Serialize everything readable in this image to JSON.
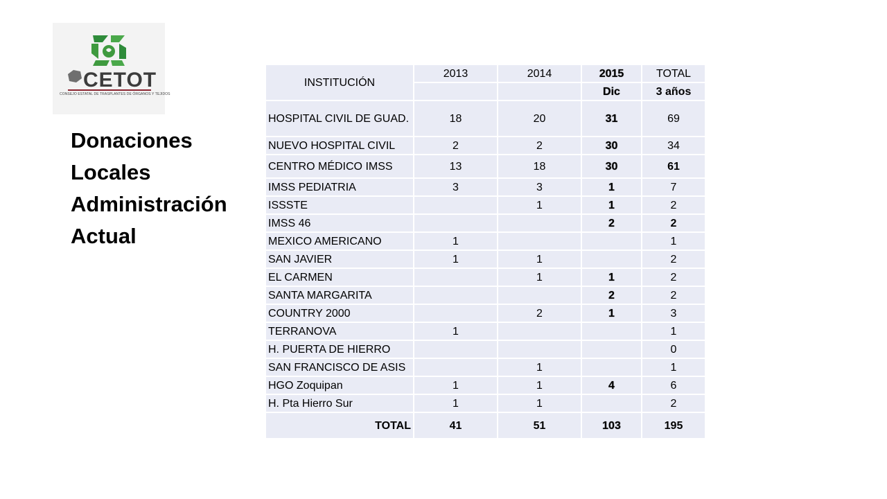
{
  "logo": {
    "name": "CETOT",
    "subtitle": "CONSEJO ESTATAL DE TRASPLANTES DE ÓRGANOS Y TEJIDOS"
  },
  "title_lines": [
    "Donaciones",
    "Locales",
    "Administración",
    "Actual"
  ],
  "table": {
    "header": {
      "institution": "INSTITUCIÓN",
      "y2013": "2013",
      "y2014": "2014",
      "y2015": "2015",
      "y2015_sub": "Dic",
      "total": "TOTAL",
      "total_sub": "3 años"
    },
    "rows": [
      {
        "name": "HOSPITAL CIVIL DE GUAD.",
        "y2013": "18",
        "y2014": "20",
        "y2015": "31",
        "total": "69"
      },
      {
        "name": "NUEVO HOSPITAL CIVIL",
        "y2013": "2",
        "y2014": "2",
        "y2015": "30",
        "total": "34"
      },
      {
        "name": "CENTRO MÉDICO IMSS",
        "y2013": "13",
        "y2014": "18",
        "y2015": "30",
        "total": "61"
      },
      {
        "name": "IMSS PEDIATRIA",
        "y2013": "3",
        "y2014": "3",
        "y2015": "1",
        "total": "7"
      },
      {
        "name": "ISSSTE",
        "y2013": "",
        "y2014": "1",
        "y2015": "1",
        "total": "2"
      },
      {
        "name": "IMSS 46",
        "y2013": "",
        "y2014": "",
        "y2015": "2",
        "total": "2"
      },
      {
        "name": "MEXICO AMERICANO",
        "y2013": "1",
        "y2014": "",
        "y2015": "",
        "total": "1"
      },
      {
        "name": "SAN JAVIER",
        "y2013": "1",
        "y2014": "1",
        "y2015": "",
        "total": "2"
      },
      {
        "name": "EL CARMEN",
        "y2013": "",
        "y2014": "1",
        "y2015": "1",
        "total": "2"
      },
      {
        "name": "SANTA MARGARITA",
        "y2013": "",
        "y2014": "",
        "y2015": "2",
        "total": "2"
      },
      {
        "name": "COUNTRY 2000",
        "y2013": "",
        "y2014": "2",
        "y2015": "1",
        "total": "3"
      },
      {
        "name": "TERRANOVA",
        "y2013": "1",
        "y2014": "",
        "y2015": "",
        "total": "1"
      },
      {
        "name": "H. PUERTA DE HIERRO",
        "y2013": "",
        "y2014": "",
        "y2015": "",
        "total": "0"
      },
      {
        "name": "SAN FRANCISCO DE ASIS",
        "y2013": "",
        "y2014": "1",
        "y2015": "",
        "total": "1"
      },
      {
        "name": "HGO Zoquipan",
        "y2013": "1",
        "y2014": "1",
        "y2015": "4",
        "total": "6"
      },
      {
        "name": "H. Pta Hierro Sur",
        "y2013": "1",
        "y2014": "1",
        "y2015": "",
        "total": "2"
      }
    ],
    "totals": {
      "label": "TOTAL",
      "y2013": "41",
      "y2014": "51",
      "y2015": "103",
      "total": "195"
    }
  }
}
